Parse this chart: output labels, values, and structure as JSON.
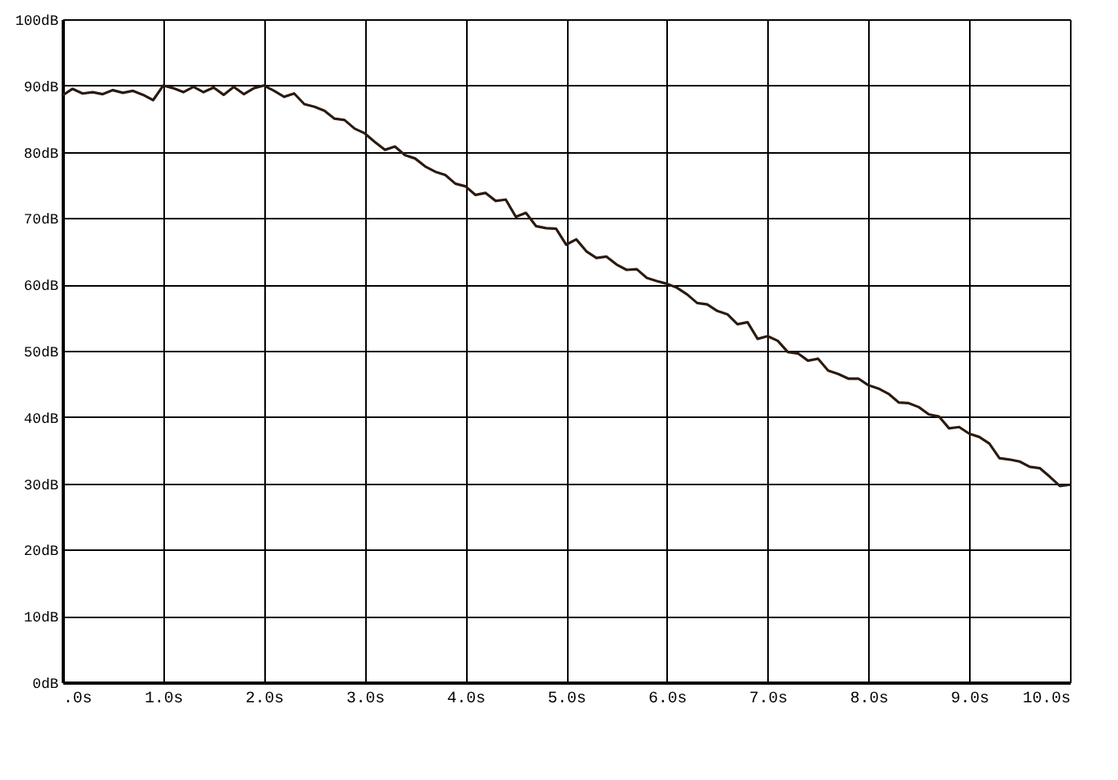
{
  "chart_data": {
    "type": "line",
    "grid": true,
    "xlim": [
      0,
      10
    ],
    "ylim": [
      0,
      100
    ],
    "xticks": [
      {
        "value": 0,
        "label": ".0s"
      },
      {
        "value": 1,
        "label": "1.0s"
      },
      {
        "value": 2,
        "label": "2.0s"
      },
      {
        "value": 3,
        "label": "3.0s"
      },
      {
        "value": 4,
        "label": "4.0s"
      },
      {
        "value": 5,
        "label": "5.0s"
      },
      {
        "value": 6,
        "label": "6.0s"
      },
      {
        "value": 7,
        "label": "7.0s"
      },
      {
        "value": 8,
        "label": "8.0s"
      },
      {
        "value": 9,
        "label": "9.0s"
      },
      {
        "value": 10,
        "label": "10.0s"
      }
    ],
    "yticks": [
      {
        "value": 0,
        "label": "0dB"
      },
      {
        "value": 10,
        "label": "10dB"
      },
      {
        "value": 20,
        "label": "20dB"
      },
      {
        "value": 30,
        "label": "30dB"
      },
      {
        "value": 40,
        "label": "40dB"
      },
      {
        "value": 50,
        "label": "50dB"
      },
      {
        "value": 60,
        "label": "60dB"
      },
      {
        "value": 70,
        "label": "70dB"
      },
      {
        "value": 80,
        "label": "80dB"
      },
      {
        "value": 90,
        "label": "90dB"
      },
      {
        "value": 100,
        "label": "100dB"
      }
    ],
    "x": [
      0,
      0.1,
      0.2,
      0.3,
      0.4,
      0.5,
      0.6,
      0.7,
      0.8,
      0.9,
      1.0,
      1.1,
      1.2,
      1.3,
      1.4,
      1.5,
      1.6,
      1.7,
      1.8,
      1.9,
      2.0,
      2.1,
      2.2,
      2.3,
      2.4,
      2.5,
      2.6,
      2.7,
      2.8,
      2.9,
      3.0,
      3.1,
      3.2,
      3.3,
      3.4,
      3.5,
      3.6,
      3.7,
      3.8,
      3.9,
      4.0,
      4.1,
      4.2,
      4.3,
      4.4,
      4.5,
      4.6,
      4.7,
      4.8,
      4.9,
      5.0,
      5.1,
      5.2,
      5.3,
      5.4,
      5.5,
      5.6,
      5.7,
      5.8,
      5.9,
      6.0,
      6.1,
      6.2,
      6.3,
      6.4,
      6.5,
      6.6,
      6.7,
      6.8,
      6.9,
      7.0,
      7.1,
      7.2,
      7.3,
      7.4,
      7.5,
      7.6,
      7.7,
      7.8,
      7.9,
      8.0,
      8.1,
      8.2,
      8.3,
      8.4,
      8.5,
      8.6,
      8.7,
      8.8,
      8.9,
      9.0,
      9.1,
      9.2,
      9.3,
      9.4,
      9.5,
      9.6,
      9.7,
      9.8,
      9.9,
      10.0
    ],
    "series": [
      {
        "color": "#2b1a0e",
        "values": [
          88.5,
          89.5,
          88.8,
          89,
          88.7,
          89.3,
          88.9,
          89.2,
          88.6,
          87.8,
          90,
          89.6,
          89,
          89.8,
          89,
          89.7,
          88.6,
          89.8,
          88.7,
          89.6,
          90,
          89.2,
          88.3,
          88.8,
          87.2,
          86.8,
          86.2,
          85,
          84.8,
          83.5,
          82.8,
          81.5,
          80.3,
          80.8,
          79.5,
          79,
          77.8,
          77,
          76.5,
          75.2,
          74.8,
          73.5,
          73.8,
          72.6,
          72.8,
          70.2,
          70.8,
          68.8,
          68.5,
          68.4,
          66,
          66.8,
          65,
          64,
          64.2,
          63,
          62.2,
          62.3,
          61,
          60.5,
          60.1,
          59.5,
          58.5,
          57.2,
          57,
          56,
          55.5,
          54,
          54.3,
          51.8,
          52.2,
          51.5,
          49.8,
          49.6,
          48.5,
          48.8,
          47,
          46.5,
          45.8,
          45.8,
          44.8,
          44.3,
          43.5,
          42.2,
          42.1,
          41.5,
          40.4,
          40.1,
          38.3,
          38.5,
          37.5,
          37,
          36,
          33.8,
          33.6,
          33.3,
          32.5,
          32.3,
          31,
          29.6,
          29.8
        ]
      }
    ]
  }
}
